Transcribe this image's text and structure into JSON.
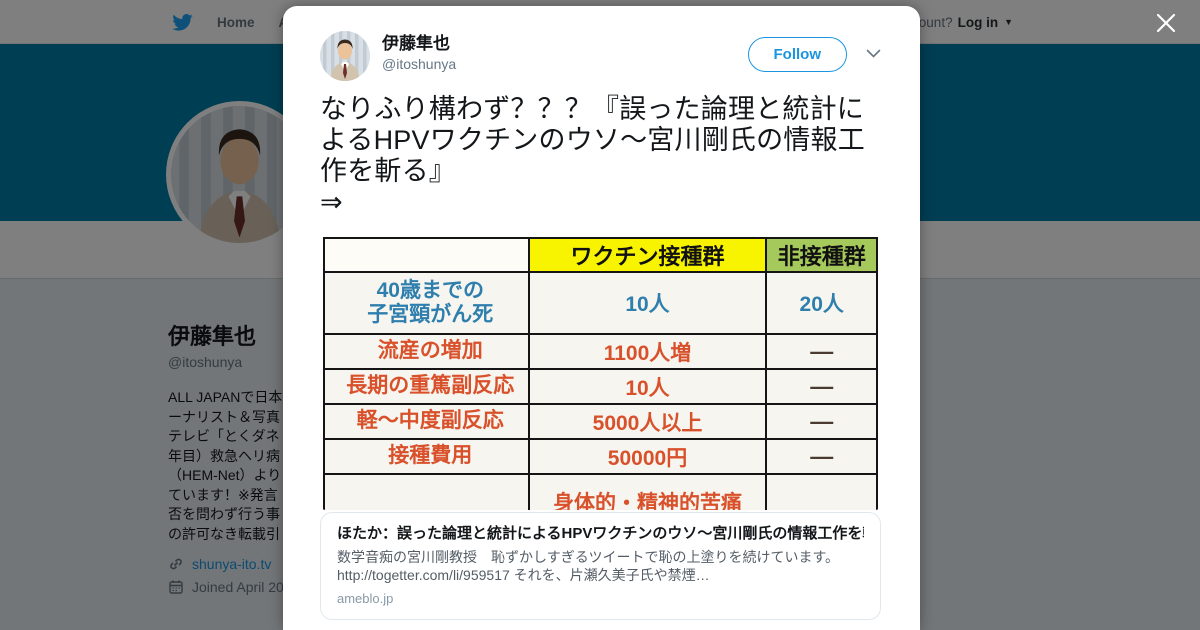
{
  "nav": {
    "brand_icon": "twitter-bird-icon",
    "items": [
      {
        "label": "Home"
      },
      {
        "label": "About"
      }
    ],
    "account_prompt": "Have an account?",
    "login_label": "Log in"
  },
  "overlay": {
    "close_icon": "close-icon"
  },
  "profile": {
    "name": "伊藤隼也",
    "handle": "@itoshunya",
    "bio_lines": [
      "ALL JAPANで日本",
      "ーナリスト＆写真",
      "テレビ「とくダネ",
      "年目）救急ヘリ病",
      "（HEM-Net）より",
      "ています！※発言",
      "否を問わず行う事",
      "の許可なき転載引"
    ],
    "website": "shunya-ito.tv",
    "joined": "Joined April 20"
  },
  "modal": {
    "user": {
      "name": "伊藤隼也",
      "handle": "@itoshunya"
    },
    "follow_label": "Follow",
    "tweet": {
      "text": "なりふり構わず？？？『誤った論理と統計によるHPVワクチンのウソ～宮川剛氏の情報工作を斬る』",
      "arrow": "⇒"
    },
    "table": {
      "columns": [
        "",
        "ワクチン接種群",
        "非接種群"
      ],
      "rows": [
        {
          "label": "40歳までの\n子宮頸がん死",
          "vaccinated": "10人",
          "unvaccinated": "20人",
          "color": "blue"
        },
        {
          "label": "流産の増加",
          "vaccinated": "1100人増",
          "unvaccinated": "―",
          "color": "orange"
        },
        {
          "label": "長期の重篤副反応",
          "vaccinated": "10人",
          "unvaccinated": "―",
          "color": "orange"
        },
        {
          "label": "軽～中度副反応",
          "vaccinated": "5000人以上",
          "unvaccinated": "―",
          "color": "orange"
        },
        {
          "label": "接種費用",
          "vaccinated": "50000円",
          "unvaccinated": "―",
          "color": "orange"
        },
        {
          "label": "",
          "vaccinated": "身体的・精神的苦痛",
          "unvaccinated": "",
          "color": "orange"
        }
      ]
    },
    "card": {
      "title": "ほたか：誤った論理と統計によるHPVワクチンのウソ～宮川剛氏の情報工作を斬る",
      "description_lines": [
        "数学音痴の宮川剛教授　恥ずかしすぎるツイートで恥の上塗りを続けています。",
        "http://togetter.com/li/959517 それを、片瀬久美子氏や禁煙…"
      ],
      "domain": "ameblo.jp"
    }
  },
  "colors": {
    "twitter_blue": "#1da1f2",
    "follow_blue": "#1b95e0",
    "header_teal": "#007ca6",
    "table_yellow": "#f8f400",
    "table_green": "#a6c95b",
    "table_orange": "#d8512b",
    "table_blue": "#2e7fae"
  }
}
